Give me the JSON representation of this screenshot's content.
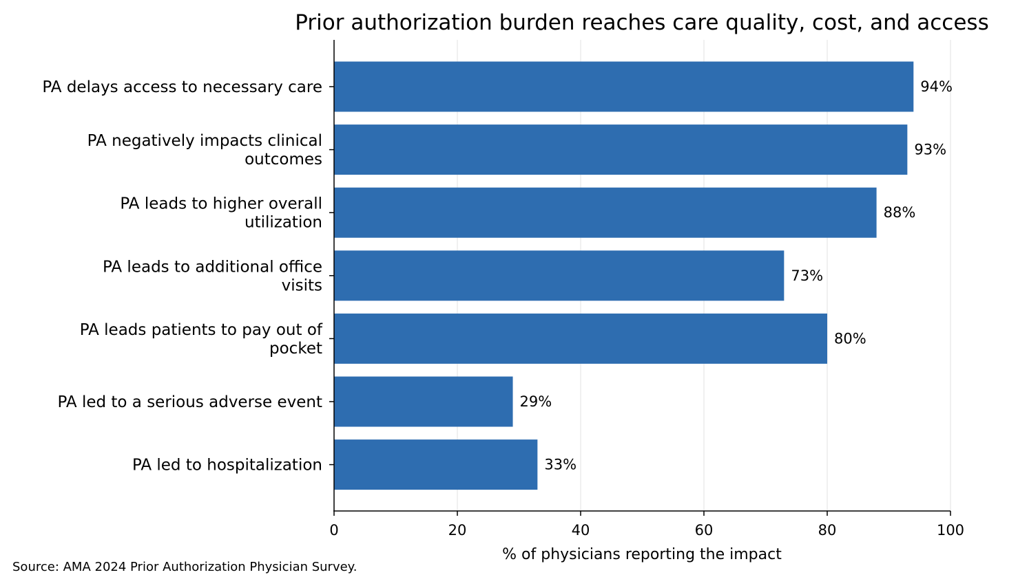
{
  "chart_data": {
    "type": "bar",
    "orientation": "horizontal",
    "title": "Prior authorization burden reaches care quality, cost, and access",
    "xlabel": "% of physicians reporting the impact",
    "ylabel": "",
    "xlim": [
      0,
      100
    ],
    "xticks": [
      0,
      20,
      40,
      60,
      80,
      100
    ],
    "grid": "vertical",
    "categories": [
      [
        "PA delays access to necessary care"
      ],
      [
        "PA negatively impacts clinical",
        "outcomes"
      ],
      [
        "PA leads to higher overall",
        "utilization"
      ],
      [
        "PA leads to additional office",
        "visits"
      ],
      [
        "PA leads patients to pay out of",
        "pocket"
      ],
      [
        "PA led to a serious adverse event"
      ],
      [
        "PA led to hospitalization"
      ]
    ],
    "values": [
      94,
      93,
      88,
      73,
      80,
      29,
      33
    ],
    "data_labels": [
      "94%",
      "93%",
      "88%",
      "73%",
      "80%",
      "29%",
      "33%"
    ],
    "bar_color": "#2e6db0",
    "source": "Source: AMA 2024 Prior Authorization Physician Survey."
  }
}
